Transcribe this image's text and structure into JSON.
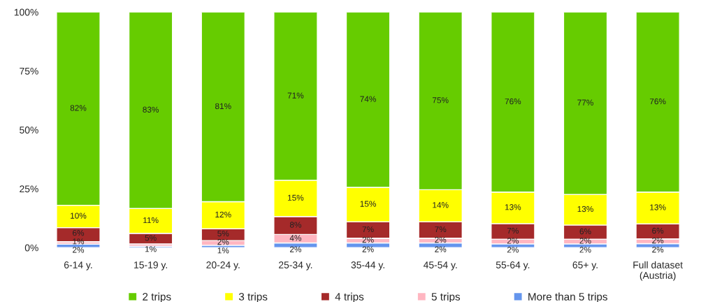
{
  "chart_data": {
    "type": "bar",
    "stacked": true,
    "categories": [
      "6-14 y.",
      "15-19 y.",
      "20-24 y.",
      "25-34 y.",
      "35-44 y.",
      "45-54 y.",
      "55-64 y.",
      "65+ y.",
      "Full dataset\n(Austria)"
    ],
    "series": [
      {
        "name": "More than 5 trips",
        "color": "#6495ed",
        "values": [
          1.5,
          0.6,
          1,
          2,
          2,
          2,
          1.6,
          1.6,
          1.7
        ],
        "value_labels": [
          "2%",
          null,
          "1%",
          "2%",
          "2%",
          "2%",
          "2%",
          "2%",
          "2%"
        ]
      },
      {
        "name": "5 trips",
        "color": "#ffb6c1",
        "values": [
          1,
          1,
          2,
          3.6,
          2,
          2,
          2,
          2,
          2
        ],
        "value_labels": [
          "1%",
          "1%",
          "2%",
          "4%",
          "2%",
          "2%",
          "2%",
          "2%",
          "2%"
        ]
      },
      {
        "name": "4 trips",
        "color": "#a52a2a",
        "values": [
          6,
          4.5,
          5,
          7.6,
          7,
          7,
          6.6,
          6,
          6.4
        ],
        "value_labels": [
          "6%",
          "5%",
          "5%",
          "8%",
          "7%",
          "7%",
          "7%",
          "6%",
          "6%"
        ]
      },
      {
        "name": "3 trips",
        "color": "#ffff00",
        "values": [
          9.5,
          10.5,
          11.5,
          15.4,
          14.6,
          13.6,
          13.4,
          13,
          13.5
        ],
        "value_labels": [
          "10%",
          "11%",
          "12%",
          "15%",
          "15%",
          "14%",
          "13%",
          "13%",
          "13%"
        ]
      },
      {
        "name": "2 trips",
        "color": "#66cc00",
        "values": [
          82,
          83.4,
          80.5,
          71.4,
          74.4,
          75.4,
          76.4,
          77.4,
          76.4
        ],
        "value_labels": [
          "82%",
          "83%",
          "81%",
          "71%",
          "74%",
          "75%",
          "76%",
          "77%",
          "76%"
        ]
      }
    ],
    "ylim": [
      0,
      100
    ],
    "yticks": [
      {
        "value": 0,
        "label": "0%"
      },
      {
        "value": 25,
        "label": "25%"
      },
      {
        "value": 50,
        "label": "50%"
      },
      {
        "value": 75,
        "label": "75%"
      },
      {
        "value": 100,
        "label": "100%"
      }
    ],
    "legend": "bottom",
    "grid": false
  }
}
